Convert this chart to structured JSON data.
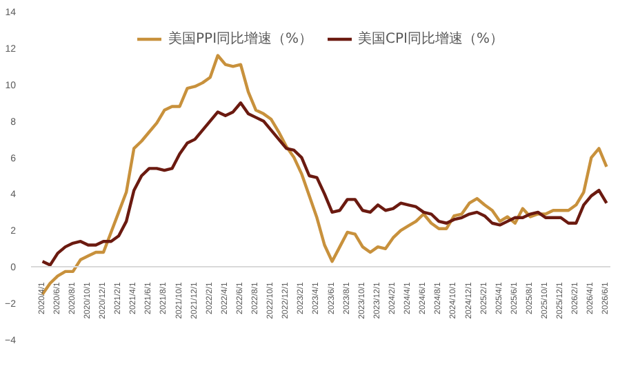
{
  "chart_data": {
    "type": "line",
    "categories": [
      "2020/4/1",
      null,
      "2020/6/1",
      null,
      "2020/8/1",
      null,
      "2020/10/1",
      null,
      "2020/12/1",
      null,
      "2021/2/1",
      null,
      "2021/4/1",
      null,
      "2021/6/1",
      null,
      "2021/8/1",
      null,
      "2021/10/1",
      null,
      "2021/12/1",
      null,
      "2022/2/1",
      null,
      "2022/4/1",
      null,
      "2022/6/1",
      null,
      "2022/8/1",
      null,
      "2022/10/1",
      null,
      "2022/12/1",
      null,
      "2023/2/1",
      null,
      "2023/4/1",
      null,
      "2023/6/1",
      null,
      "2023/8/1",
      null,
      "2023/10/1",
      null,
      "2023/12/1",
      null,
      "2024/2/1",
      null,
      "2024/4/1",
      null,
      "2024/6/1",
      null,
      "2024/8/1",
      null,
      "2024/10/1",
      null,
      "2024/12/1",
      null,
      "2025/2/1",
      null,
      "2025/4/1",
      null,
      "2025/6/1",
      null,
      "2025/8/1",
      null,
      "2025/10/1",
      null,
      "2025/12/1",
      null,
      "2026/2/1",
      null,
      "2026/4/1",
      null,
      "2026/6/1"
    ],
    "series": [
      {
        "name": "美国PPI同比增速（%）",
        "color": "#c8913c",
        "values": [
          -1.5,
          -0.9,
          -0.5,
          -0.25,
          -0.25,
          0.4,
          0.6,
          0.8,
          0.8,
          1.9,
          3.0,
          4.1,
          6.5,
          6.9,
          7.4,
          7.9,
          8.6,
          8.8,
          8.8,
          9.8,
          9.9,
          10.1,
          10.4,
          11.6,
          11.1,
          11.0,
          11.1,
          9.6,
          8.6,
          8.4,
          8.1,
          7.4,
          6.6,
          6.0,
          5.1,
          3.9,
          2.7,
          1.2,
          0.3,
          1.1,
          1.9,
          1.8,
          1.1,
          0.8,
          1.1,
          1.0,
          1.6,
          2.0,
          2.25,
          2.5,
          2.9,
          2.4,
          2.1,
          2.1,
          2.8,
          2.9,
          3.5,
          3.75,
          3.4,
          3.1,
          2.5,
          2.75,
          2.4,
          3.2,
          2.75,
          2.9,
          2.9,
          3.1,
          3.1,
          3.1,
          3.4,
          4.1,
          6.0,
          6.5,
          5.5
        ]
      },
      {
        "name": "美国CPI同比增速（%）",
        "color": "#6b1a10",
        "values": [
          0.3,
          0.1,
          0.75,
          1.1,
          1.3,
          1.4,
          1.2,
          1.2,
          1.4,
          1.4,
          1.7,
          2.5,
          4.2,
          5.0,
          5.4,
          5.4,
          5.3,
          5.4,
          6.2,
          6.8,
          7.0,
          7.5,
          8.0,
          8.5,
          8.3,
          8.5,
          9.0,
          8.4,
          8.2,
          8.0,
          7.5,
          7.0,
          6.5,
          6.4,
          6.0,
          5.0,
          4.9,
          4.0,
          3.0,
          3.1,
          3.7,
          3.7,
          3.1,
          3.0,
          3.4,
          3.1,
          3.2,
          3.5,
          3.4,
          3.3,
          3.0,
          2.9,
          2.5,
          2.4,
          2.6,
          2.7,
          2.9,
          3.0,
          2.8,
          2.4,
          2.3,
          2.5,
          2.7,
          2.7,
          2.9,
          3.0,
          2.7,
          2.7,
          2.7,
          2.4,
          2.4,
          3.4,
          3.9,
          4.2,
          3.5
        ]
      }
    ],
    "ylim": [
      -4,
      14
    ],
    "yticks": [
      -4,
      -2,
      0,
      2,
      4,
      6,
      8,
      10,
      12,
      14
    ],
    "grid": false,
    "legend": "top",
    "line_style": "solid",
    "marker": "none"
  }
}
